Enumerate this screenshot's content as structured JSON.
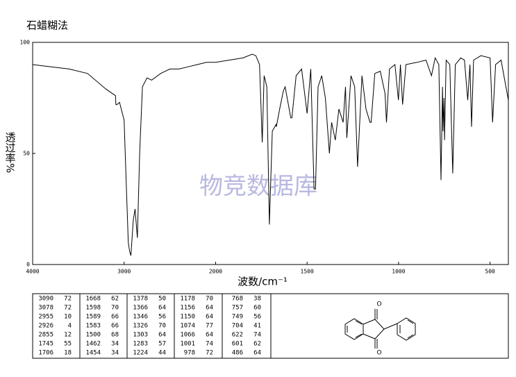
{
  "chart_data": {
    "type": "line",
    "title": "石蜡糊法",
    "x_label": "波数/cm⁻¹",
    "y_label": "透过率%",
    "watermark": "物竞数据库",
    "color": "#000000",
    "xlim": [
      4000,
      400
    ],
    "ylim": [
      0,
      100
    ],
    "xticks": [
      4000,
      3000,
      2000,
      1500,
      1000,
      500
    ],
    "yticks": [
      0,
      50,
      100
    ],
    "x": [
      4000,
      3800,
      3600,
      3400,
      3200,
      3094,
      3090,
      3078,
      3050,
      3000,
      2980,
      2955,
      2940,
      2926,
      2900,
      2880,
      2855,
      2830,
      2800,
      2750,
      2700,
      2600,
      2500,
      2400,
      2300,
      2200,
      2100,
      2000,
      1850,
      1800,
      1780,
      1760,
      1745,
      1735,
      1720,
      1706,
      1690,
      1670,
      1668,
      1650,
      1630,
      1620,
      1598,
      1589,
      1583,
      1560,
      1530,
      1500,
      1480,
      1462,
      1454,
      1440,
      1420,
      1400,
      1378,
      1366,
      1346,
      1326,
      1303,
      1290,
      1283,
      1260,
      1240,
      1224,
      1200,
      1178,
      1156,
      1150,
      1130,
      1100,
      1074,
      1066,
      1050,
      1020,
      1001,
      990,
      978,
      960,
      900,
      850,
      820,
      800,
      780,
      768,
      760,
      757,
      752,
      749,
      740,
      720,
      704,
      690,
      660,
      640,
      622,
      610,
      601,
      590,
      550,
      500,
      486,
      470,
      440,
      400
    ],
    "values": [
      90,
      89,
      88,
      86,
      79,
      76,
      72,
      72,
      73,
      65,
      40,
      10,
      6,
      4,
      20,
      25,
      12,
      50,
      80,
      84,
      83,
      86,
      88,
      88,
      89,
      90,
      91,
      91,
      93,
      94.7,
      94,
      90,
      55,
      85,
      80,
      18,
      60,
      63,
      62,
      70,
      78,
      80,
      70,
      66,
      66,
      85,
      88,
      68,
      88,
      34,
      34,
      80,
      85,
      75,
      50,
      64,
      56,
      70,
      64,
      80,
      57,
      85,
      80,
      44,
      85,
      70,
      64,
      64,
      86,
      87,
      77,
      64,
      88,
      90,
      74,
      90,
      72,
      90,
      91,
      92,
      85,
      93,
      90,
      38,
      80,
      60,
      75,
      56,
      92,
      90,
      41,
      90,
      93,
      92,
      74,
      90,
      62,
      92,
      94,
      93,
      64,
      90,
      92,
      74
    ]
  },
  "peak_table": {
    "columns": [
      [
        [
          3090,
          72
        ],
        [
          3078,
          72
        ],
        [
          2955,
          10
        ],
        [
          2926,
          4
        ],
        [
          2855,
          12
        ],
        [
          1745,
          55
        ],
        [
          1706,
          18
        ]
      ],
      [
        [
          1668,
          62
        ],
        [
          1598,
          70
        ],
        [
          1589,
          66
        ],
        [
          1583,
          66
        ],
        [
          1500,
          68
        ],
        [
          1462,
          34
        ],
        [
          1454,
          34
        ]
      ],
      [
        [
          1378,
          50
        ],
        [
          1366,
          64
        ],
        [
          1346,
          56
        ],
        [
          1326,
          70
        ],
        [
          1303,
          64
        ],
        [
          1283,
          57
        ],
        [
          1224,
          44
        ]
      ],
      [
        [
          1178,
          70
        ],
        [
          1156,
          64
        ],
        [
          1150,
          64
        ],
        [
          1074,
          77
        ],
        [
          1066,
          64
        ],
        [
          1001,
          74
        ],
        [
          978,
          72
        ]
      ],
      [
        [
          768,
          38
        ],
        [
          757,
          60
        ],
        [
          749,
          56
        ],
        [
          704,
          41
        ],
        [
          622,
          74
        ],
        [
          601,
          62
        ],
        [
          486,
          64
        ]
      ]
    ]
  },
  "structure": {
    "atoms": [
      "O",
      "O"
    ]
  }
}
